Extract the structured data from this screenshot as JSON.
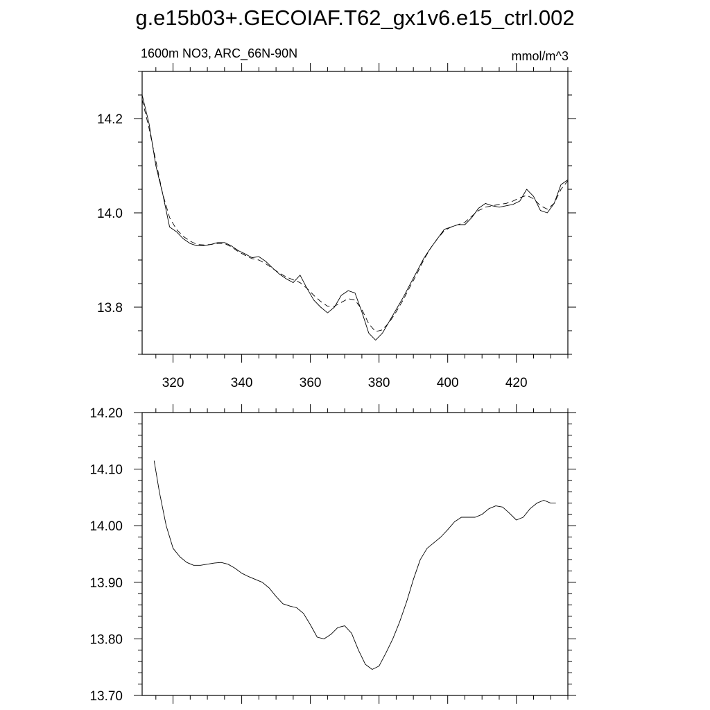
{
  "title": "g.e15b03+.GECOIAF.T62_gx1v6.e15_ctrl.002",
  "left_subtitle": "1600m NO3, ARC_66N-90N",
  "right_subtitle": "mmol/m^3",
  "chart_data": [
    {
      "type": "line",
      "panel": "top",
      "xlim": [
        311,
        435
      ],
      "ylim": [
        13.7,
        14.3
      ],
      "xticks": [
        320,
        340,
        360,
        380,
        400,
        420
      ],
      "xtick_labels": [
        "320",
        "340",
        "360",
        "380",
        "400",
        "420"
      ],
      "yticks": [
        13.8,
        14.0,
        14.2
      ],
      "ytick_labels": [
        "13.8",
        "14.0",
        "14.2"
      ],
      "grid": false,
      "series": [
        {
          "style": "solid",
          "x": [
            311,
            313,
            315,
            317,
            319,
            321,
            323,
            325,
            327,
            329,
            331,
            333,
            335,
            337,
            339,
            341,
            343,
            345,
            347,
            349,
            351,
            353,
            355,
            357,
            359,
            361,
            363,
            365,
            367,
            369,
            371,
            373,
            375,
            377,
            379,
            381,
            383,
            385,
            387,
            389,
            391,
            393,
            395,
            397,
            399,
            401,
            403,
            405,
            407,
            409,
            411,
            413,
            415,
            417,
            419,
            421,
            423,
            425,
            427,
            429,
            431,
            433,
            435
          ],
          "y": [
            14.25,
            14.19,
            14.1,
            14.04,
            13.97,
            13.96,
            13.945,
            13.935,
            13.93,
            13.93,
            13.933,
            13.937,
            13.937,
            13.93,
            13.92,
            13.913,
            13.905,
            13.907,
            13.897,
            13.883,
            13.87,
            13.86,
            13.852,
            13.868,
            13.84,
            13.815,
            13.8,
            13.788,
            13.8,
            13.825,
            13.835,
            13.83,
            13.79,
            13.745,
            13.73,
            13.745,
            13.77,
            13.795,
            13.82,
            13.848,
            13.875,
            13.903,
            13.925,
            13.945,
            13.965,
            13.97,
            13.975,
            13.975,
            13.99,
            14.01,
            14.02,
            14.015,
            14.012,
            14.015,
            14.018,
            14.025,
            14.05,
            14.035,
            14.005,
            14.0,
            14.02,
            14.06,
            14.07
          ]
        },
        {
          "style": "dashed",
          "x": [
            311,
            313,
            315,
            317,
            319,
            321,
            323,
            325,
            327,
            329,
            331,
            333,
            335,
            337,
            339,
            341,
            343,
            345,
            347,
            349,
            351,
            353,
            355,
            357,
            359,
            361,
            363,
            365,
            367,
            369,
            371,
            373,
            375,
            377,
            379,
            381,
            383,
            385,
            387,
            389,
            391,
            393,
            395,
            397,
            399,
            401,
            403,
            405,
            407,
            409,
            411,
            413,
            415,
            417,
            419,
            421,
            423,
            425,
            427,
            429,
            431,
            433,
            435
          ],
          "y": [
            14.24,
            14.18,
            14.11,
            14.04,
            13.99,
            13.965,
            13.95,
            13.94,
            13.933,
            13.932,
            13.933,
            13.935,
            13.935,
            13.928,
            13.918,
            13.91,
            13.903,
            13.9,
            13.892,
            13.882,
            13.872,
            13.864,
            13.858,
            13.852,
            13.84,
            13.825,
            13.812,
            13.802,
            13.802,
            13.81,
            13.818,
            13.815,
            13.795,
            13.765,
            13.748,
            13.752,
            13.768,
            13.79,
            13.815,
            13.843,
            13.87,
            13.9,
            13.925,
            13.945,
            13.962,
            13.97,
            13.975,
            13.98,
            13.993,
            14.005,
            14.012,
            14.015,
            14.018,
            14.02,
            14.025,
            14.032,
            14.037,
            14.03,
            14.015,
            14.008,
            14.02,
            14.05,
            14.068
          ]
        }
      ]
    },
    {
      "type": "line",
      "panel": "bottom",
      "xlim": [
        311,
        435
      ],
      "ylim": [
        13.7,
        14.2
      ],
      "xticks": [
        320,
        340,
        360,
        380,
        400,
        420
      ],
      "yticks": [
        13.7,
        13.8,
        13.9,
        14.0,
        14.1,
        14.2
      ],
      "ytick_labels": [
        "13.70",
        "13.80",
        "13.90",
        "14.00",
        "14.10",
        "14.20"
      ],
      "grid": false,
      "series": [
        {
          "style": "solid",
          "x": [
            314.5,
            316,
            318,
            320,
            322,
            324,
            326,
            328,
            330,
            332,
            334,
            336,
            338,
            340,
            342,
            344,
            346,
            348,
            350,
            352,
            354,
            356,
            358,
            360,
            362,
            364,
            366,
            368,
            370,
            372,
            374,
            376,
            378,
            380,
            382,
            384,
            386,
            388,
            390,
            392,
            394,
            396,
            398,
            400,
            402,
            404,
            406,
            408,
            410,
            412,
            414,
            416,
            418,
            420,
            422,
            424,
            426,
            428,
            430,
            431.5
          ],
          "y": [
            14.115,
            14.06,
            14.0,
            13.96,
            13.945,
            13.935,
            13.93,
            13.93,
            13.932,
            13.934,
            13.935,
            13.932,
            13.925,
            13.916,
            13.91,
            13.905,
            13.9,
            13.89,
            13.875,
            13.862,
            13.858,
            13.855,
            13.845,
            13.825,
            13.803,
            13.8,
            13.808,
            13.82,
            13.823,
            13.81,
            13.78,
            13.755,
            13.746,
            13.752,
            13.775,
            13.8,
            13.83,
            13.865,
            13.905,
            13.94,
            13.96,
            13.97,
            13.98,
            13.993,
            14.007,
            14.015,
            14.015,
            14.015,
            14.02,
            14.03,
            14.035,
            14.033,
            14.022,
            14.01,
            14.015,
            14.03,
            14.04,
            14.045,
            14.04,
            14.04
          ]
        }
      ]
    }
  ]
}
